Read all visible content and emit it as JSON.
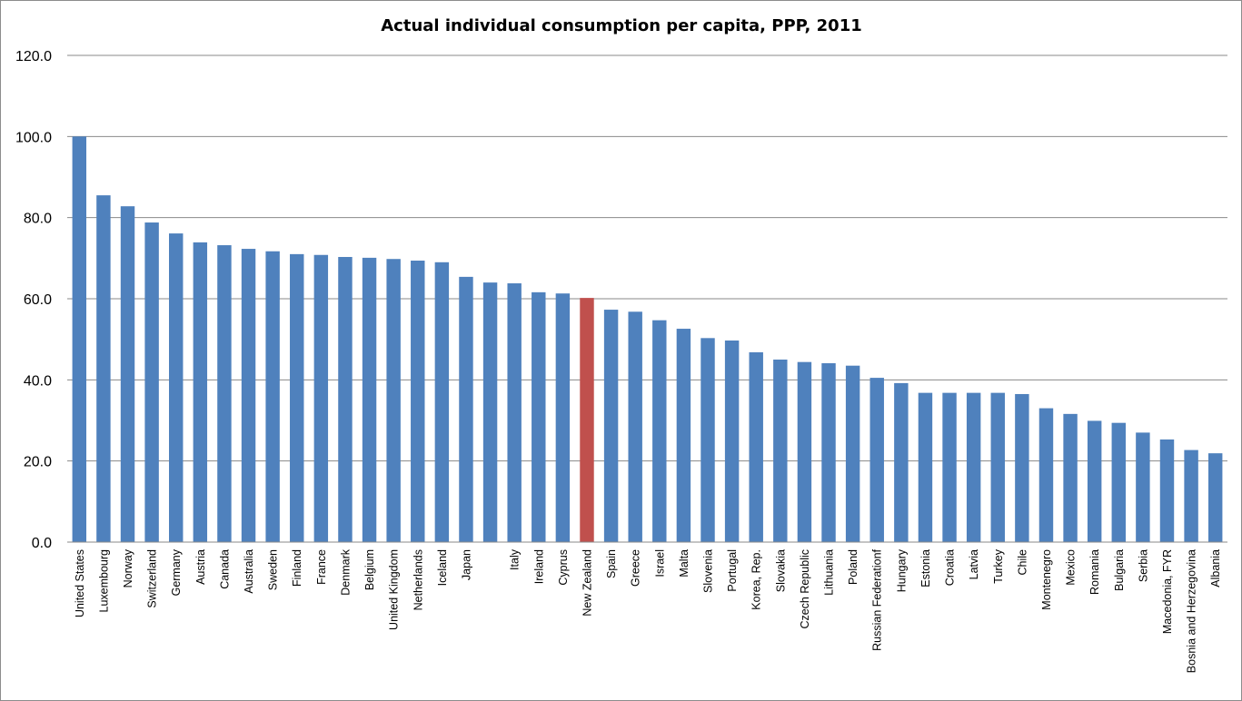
{
  "chart_data": {
    "type": "bar",
    "title": "Actual individual consumption per capita, PPP, 2011",
    "xlabel": "",
    "ylabel": "",
    "ylim": [
      0,
      120
    ],
    "yticks": [
      "0.0",
      "20.0",
      "40.0",
      "60.0",
      "80.0",
      "100.0",
      "120.0"
    ],
    "grid": true,
    "legend": "none",
    "colors": {
      "default": "#4f81bd",
      "highlight": "#c0504d"
    },
    "highlight_category": "New Zealand",
    "categories": [
      "United States",
      "Luxembourg",
      "Norway",
      "Switzerland",
      "Germany",
      "Austria",
      "Canada",
      "Australia",
      "Sweden",
      "Finland",
      "France",
      "Denmark",
      "Belgium",
      "United Kingdom",
      "Netherlands",
      "Iceland",
      "Japan",
      "",
      "Italy",
      "Ireland",
      "Cyprus",
      "New Zealand",
      "Spain",
      "Greece",
      "Israel",
      "Malta",
      "Slovenia",
      "Portugal",
      "Korea, Rep.",
      "Slovakia",
      "Czech Republic",
      "Lithuania",
      "Poland",
      "Russian Federationf",
      "Hungary",
      "Estonia",
      "Croatia",
      "Latvia",
      "Turkey",
      "Chile",
      "Montenegro",
      "Mexico",
      "Romania",
      "Bulgaria",
      "Serbia",
      "Macedonia, FYR",
      "Bosnia and Herzegovina",
      "Albania"
    ],
    "values": [
      100.0,
      85.5,
      82.8,
      78.8,
      76.1,
      73.9,
      73.2,
      72.3,
      71.7,
      71.0,
      70.8,
      70.3,
      70.1,
      69.8,
      69.4,
      69.0,
      65.4,
      64.0,
      63.8,
      61.6,
      61.3,
      60.2,
      57.3,
      56.8,
      54.7,
      52.6,
      50.3,
      49.7,
      46.8,
      45.0,
      44.4,
      44.1,
      43.5,
      40.5,
      39.2,
      36.8,
      36.8,
      36.8,
      36.8,
      36.5,
      33.0,
      31.6,
      29.9,
      29.4,
      27.0,
      25.3,
      22.7,
      21.9
    ]
  }
}
